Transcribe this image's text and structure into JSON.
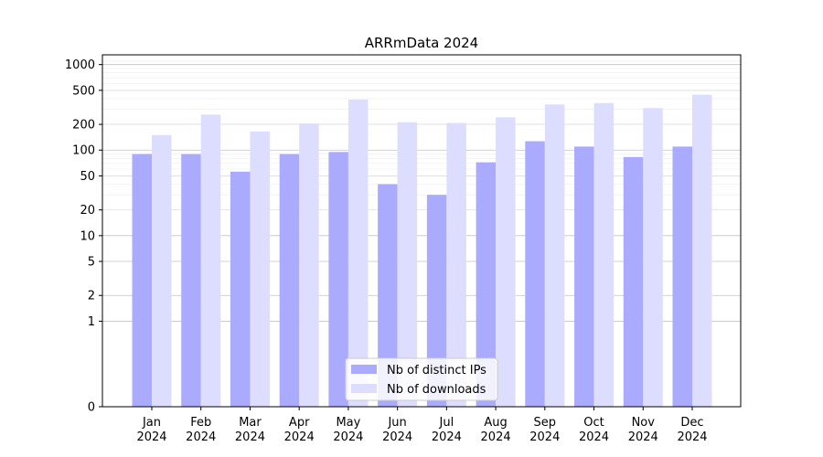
{
  "chart_data": {
    "type": "bar",
    "title": "ARRmData 2024",
    "xlabel": "",
    "ylabel": "",
    "yscale": "symlog",
    "ylim": [
      0,
      1300
    ],
    "yticks": [
      0,
      1,
      2,
      5,
      10,
      20,
      50,
      100,
      200,
      500,
      1000
    ],
    "grid": "horizontal",
    "legend": "bottom-center",
    "categories": [
      {
        "month": "Jan",
        "year": "2024"
      },
      {
        "month": "Feb",
        "year": "2024"
      },
      {
        "month": "Mar",
        "year": "2024"
      },
      {
        "month": "Apr",
        "year": "2024"
      },
      {
        "month": "May",
        "year": "2024"
      },
      {
        "month": "Jun",
        "year": "2024"
      },
      {
        "month": "Jul",
        "year": "2024"
      },
      {
        "month": "Aug",
        "year": "2024"
      },
      {
        "month": "Sep",
        "year": "2024"
      },
      {
        "month": "Oct",
        "year": "2024"
      },
      {
        "month": "Nov",
        "year": "2024"
      },
      {
        "month": "Dec",
        "year": "2024"
      }
    ],
    "series": [
      {
        "name": "Nb of distinct IPs",
        "color": "#aaaaff",
        "values": [
          90,
          90,
          56,
          90,
          95,
          40,
          30,
          72,
          127,
          110,
          83,
          110
        ]
      },
      {
        "name": "Nb of downloads",
        "color": "#ddddff",
        "values": [
          150,
          260,
          165,
          205,
          390,
          212,
          208,
          242,
          342,
          355,
          310,
          445
        ]
      }
    ]
  }
}
